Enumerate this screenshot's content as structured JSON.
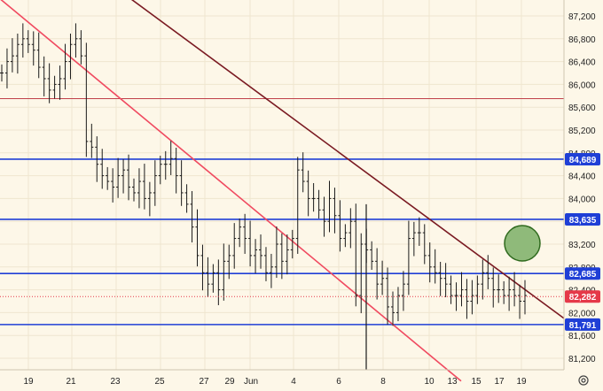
{
  "chart_data": {
    "type": "line",
    "title": "",
    "xlabel": "",
    "ylabel": "",
    "ylim": [
      81000,
      87400
    ],
    "y_ticks": [
      81200,
      81600,
      82000,
      82400,
      82800,
      83200,
      83600,
      84000,
      84400,
      84800,
      85200,
      85600,
      86000,
      86400,
      86800,
      87200
    ],
    "y_tick_labels": [
      "81,200",
      "81,600",
      "82,000",
      "82,400",
      "82,800",
      "83,200",
      "83,600",
      "84,000",
      "84,400",
      "84,800",
      "85,200",
      "85,600",
      "86,000",
      "86,400",
      "86,800",
      "87,200"
    ],
    "x_tick_labels": [
      "19",
      "21",
      "23",
      "25",
      "27",
      "29",
      "Jun",
      "4",
      "6",
      "8",
      "10",
      "13",
      "15",
      "17",
      "19"
    ],
    "grid": true,
    "series": [
      {
        "values": [
          86200,
          86400,
          86500,
          86700,
          86800,
          86700,
          86600,
          86300,
          86100,
          85900,
          86000,
          86100,
          86400,
          86700,
          86800,
          86500,
          85000,
          84900,
          84600,
          84400,
          84300,
          84200,
          84400,
          84500,
          84200,
          84100,
          84300,
          84000,
          84100,
          84400,
          84600,
          84600,
          84700,
          84400,
          84100,
          83900,
          83500,
          83000,
          82700,
          82500,
          82700,
          82400,
          82900,
          83000,
          83300,
          83500,
          83300,
          83000,
          83100,
          83000,
          82700,
          82800,
          83200,
          82900,
          83100,
          83300,
          84500,
          84300,
          84000,
          84000,
          83800,
          83600,
          84000,
          83700,
          83300,
          83400,
          83600,
          82300,
          83200,
          83100,
          82900,
          82500,
          82600,
          82100,
          82000,
          82300,
          82500,
          83300,
          83400,
          83400,
          83000,
          82800,
          82700,
          82600,
          82500,
          82300,
          82300,
          82400,
          82200,
          82300,
          82500,
          82700,
          82600,
          82400,
          82400,
          82300,
          82400,
          82300,
          82200,
          82300
        ]
      }
    ],
    "horizontal_levels": [
      {
        "value": 84689,
        "label": "84,689",
        "color": "#1f3fd6"
      },
      {
        "value": 83635,
        "label": "83,635",
        "color": "#1f3fd6"
      },
      {
        "value": 82685,
        "label": "82,685",
        "color": "#1f3fd6"
      },
      {
        "value": 81791,
        "label": "81,791",
        "color": "#1f3fd6"
      },
      {
        "value": 85750,
        "label": "",
        "color": "#c0404a"
      }
    ],
    "trendlines": [
      {
        "color": "#7a1a22",
        "from_value": 87700,
        "to_value": 81900
      },
      {
        "color": "#f04a60",
        "from_value": 87500,
        "to_value": 80800
      }
    ],
    "current_price": {
      "value": 82282,
      "label": "82,282",
      "color": "#e53949"
    },
    "marker_color": "#8fba7a",
    "bar_color": "#1a1a1a"
  },
  "icons": {
    "settings": "gear-icon"
  }
}
